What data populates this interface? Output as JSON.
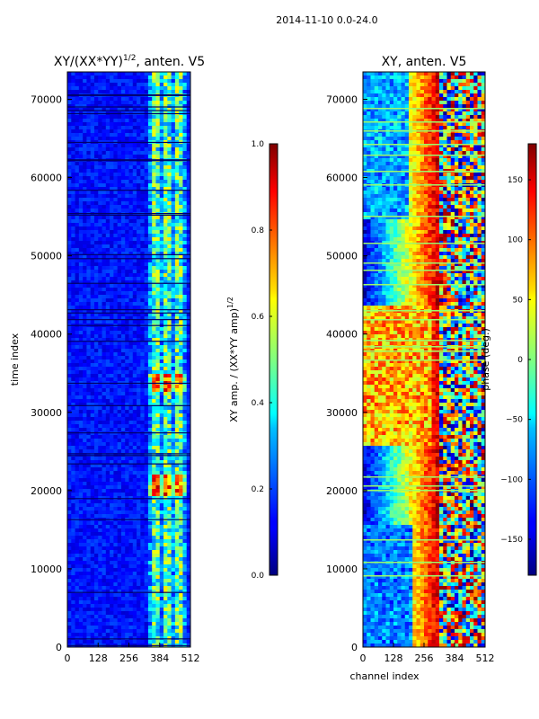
{
  "suptitle": "2014-11-10 0.0-24.0",
  "chart_data": [
    {
      "type": "heatmap",
      "title_prefix": "XY/(XX*YY)",
      "title_exp": "1/2",
      "title_suffix": ", anten. V5",
      "xlabel": "",
      "ylabel": "time index",
      "xlim": [
        0,
        512
      ],
      "ylim": [
        0,
        73500
      ],
      "xticks": [
        0,
        128,
        256,
        384,
        512
      ],
      "yticks": [
        0,
        10000,
        20000,
        30000,
        40000,
        50000,
        60000,
        70000
      ],
      "colormap": "jet",
      "description": "normalized XY amplitude vs channel and time; mostly low (dark blue) with high-amplitude columns between channels ~330 and ~490, peaks near time 21000 and 34000",
      "colorbar": {
        "label_prefix": "XY amp. / (XX*YY amp)",
        "label_exp": "1/2",
        "range": [
          0.0,
          1.0
        ],
        "ticks": [
          0.0,
          0.2,
          0.4,
          0.6,
          0.8,
          1.0
        ],
        "tick_labels": [
          "0.0",
          "0.2",
          "0.4",
          "0.6",
          "0.8",
          "1.0"
        ]
      }
    },
    {
      "type": "heatmap",
      "title": "XY, anten. V5",
      "xlabel": "channel index",
      "ylabel": "",
      "xlim": [
        0,
        512
      ],
      "ylim": [
        0,
        73500
      ],
      "xticks": [
        0,
        128,
        256,
        384,
        512
      ],
      "yticks": [
        0,
        10000,
        20000,
        30000,
        40000,
        50000,
        60000,
        70000
      ],
      "colormap": "jet",
      "description": "XY phase vs channel and time; blue-to-red gradient across channels with mixed phase beyond channel ~320",
      "colorbar": {
        "label": "phase (deg.)",
        "range": [
          -180,
          180
        ],
        "ticks": [
          -150,
          -100,
          -50,
          0,
          50,
          100,
          150
        ],
        "tick_labels": [
          "−150",
          "−100",
          "−50",
          "0",
          "50",
          "100",
          "150"
        ]
      }
    }
  ]
}
